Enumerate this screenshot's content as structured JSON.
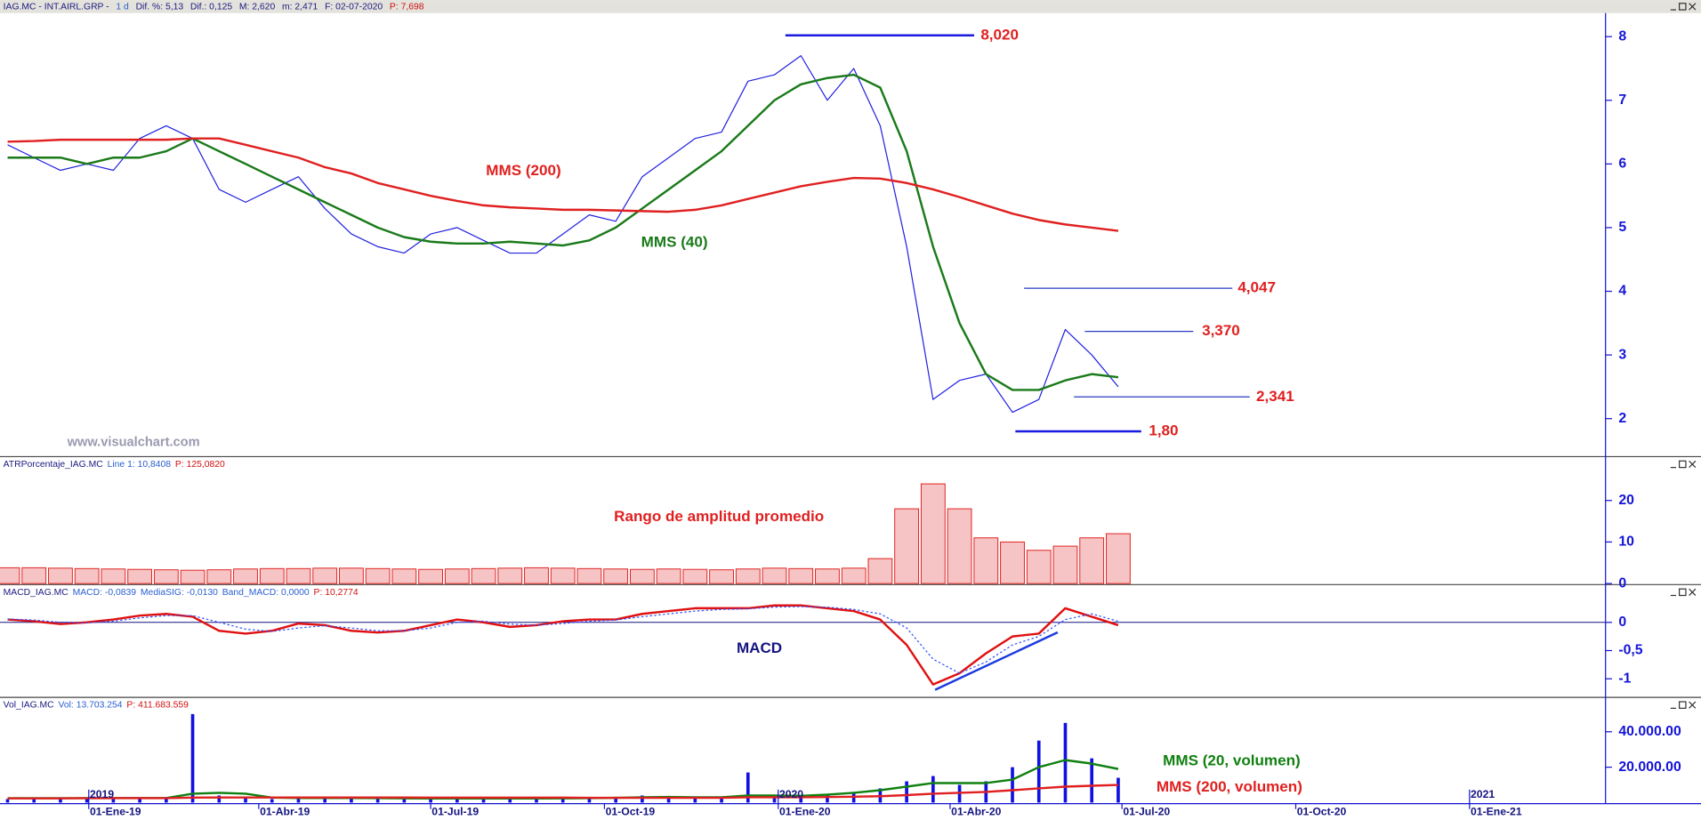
{
  "header": [
    "IAG.MC - INT.AIRL.GRP -",
    "1 d",
    "Dif. %: 5,13",
    "Dif.: 0,125",
    "M: 2,620",
    "m: 2,471",
    "F: 02-07-2020",
    "P: 7,698"
  ],
  "chart_data": [
    {
      "type": "line",
      "panel_header": [
        "IAG.MC"
      ],
      "watermark": "www.visualchart.com",
      "x": [
        "2018-11-19",
        "2018-12-03",
        "2018-12-17",
        "2018-12-31",
        "2019-01-14",
        "2019-01-28",
        "2019-02-11",
        "2019-02-25",
        "2019-03-11",
        "2019-03-25",
        "2019-04-08",
        "2019-04-22",
        "2019-05-06",
        "2019-05-20",
        "2019-06-03",
        "2019-06-17",
        "2019-07-01",
        "2019-07-15",
        "2019-07-29",
        "2019-08-12",
        "2019-08-26",
        "2019-09-09",
        "2019-09-23",
        "2019-10-07",
        "2019-10-21",
        "2019-11-04",
        "2019-11-18",
        "2019-12-02",
        "2019-12-16",
        "2019-12-30",
        "2020-01-13",
        "2020-01-27",
        "2020-02-10",
        "2020-02-24",
        "2020-03-09",
        "2020-03-23",
        "2020-04-06",
        "2020-04-20",
        "2020-05-04",
        "2020-05-18",
        "2020-06-01",
        "2020-06-15",
        "2020-06-29"
      ],
      "ylim": [
        1.42,
        8.37
      ],
      "yticks": [
        2,
        3,
        4,
        5,
        6,
        7,
        8
      ],
      "series": [
        {
          "color": "#2222e0",
          "values": [
            6.3,
            6.1,
            5.9,
            6.0,
            5.9,
            6.4,
            6.6,
            6.4,
            5.6,
            5.4,
            5.6,
            5.8,
            5.3,
            4.9,
            4.7,
            4.6,
            4.9,
            5.0,
            4.8,
            4.6,
            4.6,
            4.9,
            5.2,
            5.1,
            5.8,
            6.1,
            6.4,
            6.5,
            7.3,
            7.4,
            7.7,
            7.0,
            7.5,
            6.6,
            4.7,
            2.3,
            2.6,
            2.7,
            2.1,
            2.3,
            3.4,
            3.0,
            2.5
          ]
        },
        {
          "name": "MMS (40)",
          "color": "#1a7a1a",
          "values": [
            6.1,
            6.1,
            6.1,
            6.0,
            6.1,
            6.1,
            6.2,
            6.4,
            6.2,
            6.0,
            5.8,
            5.6,
            5.4,
            5.2,
            5.0,
            4.85,
            4.78,
            4.75,
            4.75,
            4.78,
            4.75,
            4.72,
            4.8,
            5.0,
            5.3,
            5.6,
            5.9,
            6.2,
            6.6,
            7.0,
            7.25,
            7.35,
            7.4,
            7.2,
            6.2,
            4.7,
            3.5,
            2.7,
            2.45,
            2.45,
            2.6,
            2.7,
            2.65
          ]
        },
        {
          "name": "MMS (200)",
          "color": "#e02020",
          "values": [
            6.35,
            6.36,
            6.38,
            6.38,
            6.38,
            6.38,
            6.38,
            6.4,
            6.4,
            6.3,
            6.2,
            6.1,
            5.95,
            5.85,
            5.7,
            5.6,
            5.5,
            5.42,
            5.35,
            5.32,
            5.3,
            5.28,
            5.28,
            5.27,
            5.26,
            5.25,
            5.28,
            5.35,
            5.45,
            5.55,
            5.65,
            5.72,
            5.78,
            5.77,
            5.7,
            5.6,
            5.48,
            5.35,
            5.22,
            5.12,
            5.05,
            5.0,
            4.95
          ]
        }
      ],
      "annotations": [
        {
          "value": 8.02,
          "label": "8,020"
        },
        {
          "value": 4.047,
          "label": "4,047"
        },
        {
          "value": 3.37,
          "label": "3,370"
        },
        {
          "value": 2.341,
          "label": "2,341"
        },
        {
          "value": 1.8,
          "label": "1,80"
        }
      ]
    },
    {
      "type": "bar",
      "panel_header": [
        "ATRPorcentaje_IAG.MC",
        "Line 1: 10,8408",
        "P: 125,0820"
      ],
      "ylim": [
        0,
        30.3
      ],
      "yticks": [
        0,
        10,
        20
      ],
      "series": [
        {
          "name": "Rango de amplitud promedio",
          "color": "#e02020",
          "values": [
            3.8,
            3.8,
            3.7,
            3.6,
            3.5,
            3.4,
            3.3,
            3.2,
            3.3,
            3.5,
            3.6,
            3.6,
            3.7,
            3.7,
            3.6,
            3.5,
            3.4,
            3.5,
            3.6,
            3.7,
            3.8,
            3.7,
            3.6,
            3.5,
            3.4,
            3.5,
            3.4,
            3.3,
            3.5,
            3.7,
            3.6,
            3.5,
            3.7,
            6,
            18,
            24,
            18,
            11,
            10,
            8,
            9,
            11,
            12
          ]
        }
      ]
    },
    {
      "type": "line",
      "panel_header": [
        "MACD_IAG.MC",
        "MACD: -0,0839",
        "MediaSIG: -0,0130",
        "Band_MACD: 0,0000",
        "P: 10,2774"
      ],
      "ylim": [
        -1.31,
        0.65
      ],
      "yticks": [
        0,
        {
          "value": -0.5,
          "label": "-0,5"
        },
        -1
      ],
      "baseline": 0,
      "series": [
        {
          "name": "MACD",
          "color": "#e01010",
          "values": [
            0.05,
            0.02,
            -0.03,
            0.0,
            0.05,
            0.12,
            0.15,
            0.1,
            -0.15,
            -0.2,
            -0.15,
            -0.02,
            -0.05,
            -0.15,
            -0.18,
            -0.15,
            -0.05,
            0.05,
            0.0,
            -0.08,
            -0.05,
            0.02,
            0.05,
            0.05,
            0.15,
            0.2,
            0.25,
            0.25,
            0.25,
            0.3,
            0.3,
            0.25,
            0.2,
            0.05,
            -0.4,
            -1.1,
            -0.9,
            -0.55,
            -0.25,
            -0.2,
            0.25,
            0.1,
            -0.05
          ]
        },
        {
          "color": "#3050ff",
          "style": "dotted",
          "values": [
            0.06,
            0.04,
            0.0,
            -0.01,
            0.02,
            0.08,
            0.12,
            0.12,
            0.0,
            -0.12,
            -0.16,
            -0.1,
            -0.06,
            -0.1,
            -0.15,
            -0.15,
            -0.1,
            0.0,
            0.02,
            -0.03,
            -0.05,
            -0.02,
            0.02,
            0.04,
            0.1,
            0.15,
            0.2,
            0.23,
            0.24,
            0.27,
            0.28,
            0.27,
            0.23,
            0.15,
            -0.1,
            -0.65,
            -0.9,
            -0.7,
            -0.4,
            -0.25,
            0.05,
            0.15,
            0.02
          ]
        }
      ]
    },
    {
      "type": "bar",
      "panel_header": [
        "Vol_IAG.MC",
        "Vol: 13.703.254",
        "P: 411.683.559"
      ],
      "ylim": [
        0,
        58800000
      ],
      "yticks": [
        {
          "value": 20000000,
          "label": "20.000.00"
        },
        {
          "value": 40000000,
          "label": "40.000.00"
        }
      ],
      "xlim": [
        "2018-11-15",
        "2021-03-14"
      ],
      "xticks": [
        {
          "value": "2019-01-01",
          "label": "01-Ene-19"
        },
        {
          "value": "2019-04-01",
          "label": "01-Abr-19"
        },
        {
          "value": "2019-07-01",
          "label": "01-Jul-19"
        },
        {
          "value": "2019-10-01",
          "label": "01-Oct-19"
        },
        {
          "value": "2020-01-01",
          "label": "01-Ene-20"
        },
        {
          "value": "2020-04-01",
          "label": "01-Abr-20"
        },
        {
          "value": "2020-07-01",
          "label": "01-Jul-20"
        },
        {
          "value": "2020-10-01",
          "label": "01-Oct-20"
        },
        {
          "value": "2021-01-01",
          "label": "01-Ene-21"
        }
      ],
      "year_labels": [
        {
          "value": "2019-01-01",
          "label": "2019"
        },
        {
          "value": "2020-01-01",
          "label": "2020"
        },
        {
          "value": "2021-01-01",
          "label": "2021"
        }
      ],
      "series": [
        {
          "color": "#1010e0",
          "values": [
            2000000,
            2000000,
            2000000,
            2500000,
            3000000,
            2000000,
            2000000,
            50000000,
            4000000,
            3000000,
            2000000,
            2000000,
            3000000,
            2500000,
            2000000,
            2000000,
            2000000,
            2000000,
            2500000,
            2000000,
            2000000,
            2000000,
            3000000,
            3000000,
            4000000,
            3000000,
            2500000,
            3000000,
            17000000,
            3000000,
            4000000,
            5000000,
            6000000,
            8000000,
            12000000,
            15000000,
            10000000,
            12000000,
            20000000,
            35000000,
            45000000,
            25000000,
            14000000
          ]
        },
        {
          "name": "MMS (20, volumen)",
          "type": "line",
          "color": "#108010",
          "values": [
            2500000,
            2500000,
            2500000,
            2500000,
            2600000,
            2600000,
            2600000,
            5000000,
            5500000,
            5000000,
            2800000,
            2600000,
            2600000,
            2600000,
            2500000,
            2400000,
            2300000,
            2300000,
            2300000,
            2300000,
            2300000,
            2400000,
            2500000,
            2700000,
            3000000,
            3200000,
            3000000,
            3000000,
            4000000,
            4000000,
            3800000,
            4500000,
            5500000,
            7000000,
            9000000,
            11000000,
            11000000,
            11000000,
            13000000,
            20000000,
            24000000,
            22000000,
            19000000
          ]
        },
        {
          "name": "MMS (200, volumen)",
          "type": "line",
          "color": "#e02020",
          "values": [
            2400000,
            2400000,
            2400000,
            2500000,
            2500000,
            2500000,
            2500000,
            2800000,
            2900000,
            2900000,
            2900000,
            2900000,
            2900000,
            2900000,
            2900000,
            2900000,
            2800000,
            2800000,
            2800000,
            2800000,
            2800000,
            2800000,
            2700000,
            2700000,
            2700000,
            2700000,
            2700000,
            2700000,
            3000000,
            3000000,
            3000000,
            3100000,
            3300000,
            3600000,
            4200000,
            5000000,
            5500000,
            6000000,
            7000000,
            8000000,
            9000000,
            9500000,
            10000000
          ]
        }
      ]
    }
  ]
}
